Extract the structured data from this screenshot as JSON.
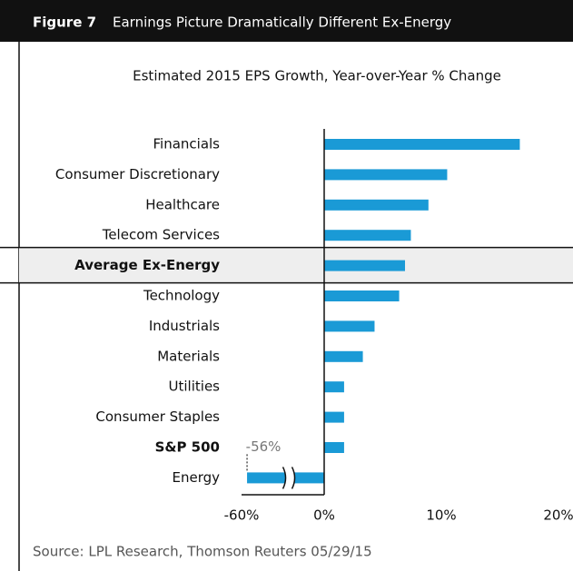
{
  "figure_label": "Figure 7",
  "figure_title": "Earnings Picture Dramatically Different Ex-Energy",
  "source": "Source: LPL Research, Thomson Reuters  05/29/15",
  "chart_data": {
    "type": "bar",
    "orientation": "horizontal",
    "title": "Estimated 2015 EPS Growth, Year-over-Year % Change",
    "categories": [
      "Financials",
      "Consumer Discretionary",
      "Healthcare",
      "Telecom Services",
      "Average Ex-Energy",
      "Technology",
      "Industrials",
      "Materials",
      "Utilities",
      "Consumer Staples",
      "S&P 500",
      "Energy"
    ],
    "values": [
      16.7,
      10.5,
      8.9,
      7.4,
      6.9,
      6.4,
      4.3,
      3.3,
      1.7,
      1.7,
      1.7,
      -56
    ],
    "value_labels": [
      null,
      null,
      null,
      null,
      null,
      null,
      null,
      null,
      null,
      null,
      null,
      "-56%"
    ],
    "color": "#1a9ad6",
    "highlight_index": 4,
    "bold_indices": [
      4,
      10
    ],
    "axis_break": true,
    "xlim": [
      -60,
      20
    ],
    "xticks": [
      {
        "value": -60,
        "label": "-60%"
      },
      {
        "value": 0,
        "label": "0%"
      },
      {
        "value": 10,
        "label": "10%"
      },
      {
        "value": 20,
        "label": "20%"
      }
    ]
  }
}
